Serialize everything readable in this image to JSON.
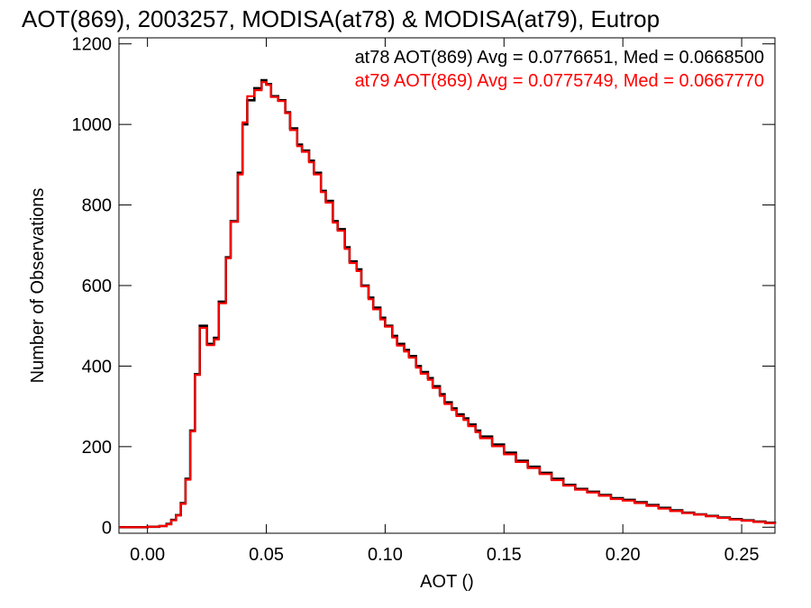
{
  "chart_data": {
    "type": "line",
    "title": "AOT(869), 2003257, MODISA(at78) & MODISA(at79), Eutrop",
    "xlabel": "AOT ()",
    "ylabel": "Number of Observations",
    "xlim": [
      -0.012,
      0.264
    ],
    "ylim": [
      -15,
      1215
    ],
    "x_ticks": [
      0.0,
      0.05,
      0.1,
      0.15,
      0.2,
      0.25
    ],
    "x_tick_labels": [
      "0.00",
      "0.05",
      "0.10",
      "0.15",
      "0.20",
      "0.25"
    ],
    "y_ticks": [
      0,
      200,
      400,
      600,
      800,
      1000,
      1200
    ],
    "y_tick_labels": [
      "0",
      "200",
      "400",
      "600",
      "800",
      "1000",
      "1200"
    ],
    "grid": false,
    "legend_position": "top-right",
    "x": [
      -0.012,
      -0.005,
      0.0,
      0.005,
      0.008,
      0.01,
      0.012,
      0.014,
      0.016,
      0.018,
      0.02,
      0.022,
      0.025,
      0.028,
      0.03,
      0.033,
      0.035,
      0.038,
      0.04,
      0.042,
      0.045,
      0.048,
      0.05,
      0.052,
      0.055,
      0.058,
      0.06,
      0.063,
      0.065,
      0.068,
      0.07,
      0.073,
      0.075,
      0.078,
      0.08,
      0.083,
      0.085,
      0.088,
      0.09,
      0.093,
      0.095,
      0.098,
      0.1,
      0.103,
      0.105,
      0.108,
      0.11,
      0.113,
      0.115,
      0.118,
      0.12,
      0.123,
      0.125,
      0.128,
      0.13,
      0.133,
      0.135,
      0.138,
      0.14,
      0.145,
      0.15,
      0.155,
      0.16,
      0.165,
      0.17,
      0.175,
      0.18,
      0.185,
      0.19,
      0.195,
      0.2,
      0.205,
      0.21,
      0.215,
      0.22,
      0.225,
      0.23,
      0.235,
      0.24,
      0.245,
      0.25,
      0.255,
      0.26,
      0.264
    ],
    "series": [
      {
        "name": "at78",
        "color": "#000000",
        "values": [
          0,
          0,
          1,
          3,
          8,
          18,
          30,
          60,
          120,
          240,
          380,
          500,
          455,
          470,
          560,
          670,
          760,
          880,
          1000,
          1060,
          1090,
          1110,
          1100,
          1070,
          1060,
          1030,
          990,
          950,
          935,
          910,
          880,
          835,
          810,
          760,
          740,
          695,
          660,
          640,
          600,
          570,
          545,
          520,
          500,
          475,
          455,
          440,
          425,
          400,
          385,
          370,
          350,
          330,
          310,
          295,
          280,
          270,
          255,
          240,
          225,
          205,
          185,
          165,
          150,
          135,
          120,
          105,
          95,
          88,
          80,
          72,
          68,
          62,
          55,
          48,
          42,
          36,
          32,
          28,
          24,
          20,
          17,
          14,
          11,
          9
        ]
      },
      {
        "name": "at79",
        "color": "#ff0000",
        "values": [
          0,
          0,
          1,
          3,
          7,
          17,
          29,
          58,
          118,
          238,
          378,
          495,
          452,
          466,
          556,
          668,
          758,
          876,
          1005,
          1070,
          1085,
          1105,
          1098,
          1068,
          1058,
          1028,
          986,
          946,
          932,
          906,
          876,
          832,
          806,
          756,
          736,
          691,
          656,
          636,
          598,
          566,
          541,
          516,
          498,
          471,
          451,
          436,
          421,
          396,
          381,
          366,
          346,
          326,
          306,
          291,
          276,
          266,
          251,
          236,
          221,
          201,
          181,
          162,
          147,
          132,
          117,
          103,
          93,
          86,
          78,
          70,
          66,
          60,
          53,
          46,
          40,
          35,
          31,
          27,
          23,
          19,
          16,
          13,
          10,
          8
        ]
      }
    ],
    "annotations": [
      "at78 AOT(869) Avg = 0.0776651, Med = 0.0668500",
      "at79 AOT(869) Avg = 0.0775749, Med = 0.0667770"
    ]
  }
}
